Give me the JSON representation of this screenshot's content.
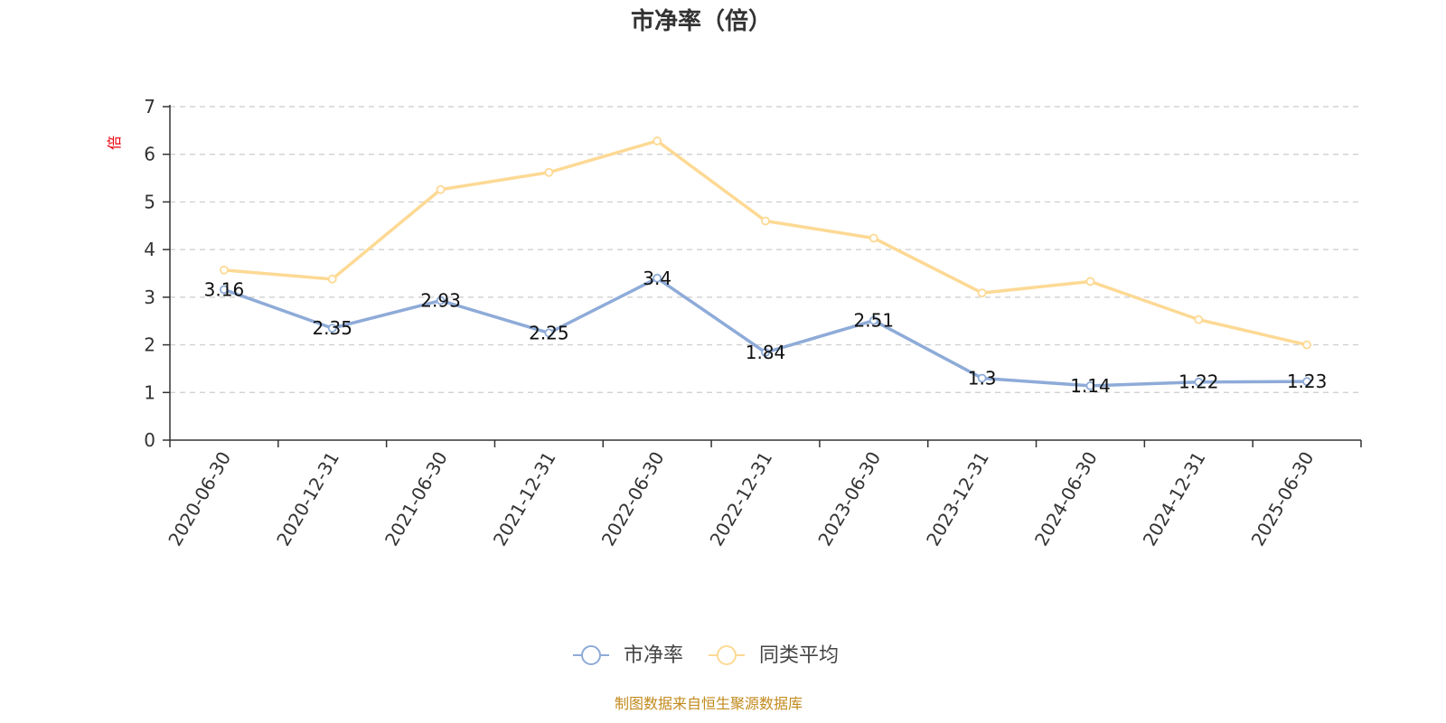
{
  "chart_data": {
    "type": "line",
    "title": "市净率（倍）",
    "ylabel": "倍",
    "ylim": [
      0,
      7
    ],
    "yticks": [
      0,
      1,
      2,
      3,
      4,
      5,
      6,
      7
    ],
    "grid": true,
    "legend_position": "bottom-center",
    "categories": [
      "2020-06-30",
      "2020-12-31",
      "2021-06-30",
      "2021-12-31",
      "2022-06-30",
      "2022-12-31",
      "2023-06-30",
      "2023-12-31",
      "2024-06-30",
      "2024-12-31",
      "2025-06-30"
    ],
    "series": [
      {
        "name": "市净率",
        "color": "#8eabd8",
        "values": [
          3.16,
          2.35,
          2.93,
          2.25,
          3.4,
          1.84,
          2.51,
          1.3,
          1.14,
          1.22,
          1.23
        ],
        "data_labels": [
          "3.16",
          "2.35",
          "2.93",
          "2.25",
          "3.4",
          "1.84",
          "2.51",
          "1.3",
          "1.14",
          "1.22",
          "1.23"
        ]
      },
      {
        "name": "同类平均",
        "color": "#fdd994",
        "values": [
          3.57,
          3.38,
          5.26,
          5.62,
          6.28,
          4.6,
          4.24,
          3.09,
          3.33,
          2.53,
          2.0
        ]
      }
    ],
    "source": "制图数据来自恒生聚源数据库"
  },
  "colors": {
    "axis": "#333333",
    "grid": "#cccccc",
    "unit_label": "#e8000b",
    "source": "#c28a1c"
  }
}
